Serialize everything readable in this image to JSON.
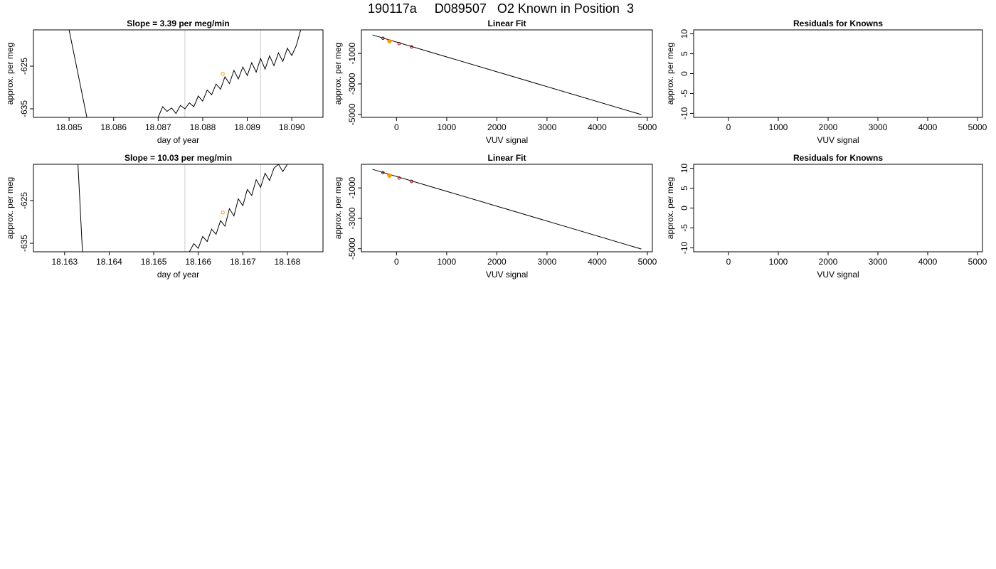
{
  "main_title": "190117a     D089507   O2 Known in Position  3",
  "colors": {
    "line": "#000000",
    "vline": "#cccccc",
    "marker": "#ff9900",
    "point": "#8b0000",
    "frame": "#000000"
  },
  "chart_data": [
    {
      "type": "line",
      "title": "Slope =  3.39  per meg/min",
      "xlabel": "day of year",
      "ylabel": "approx. per meg",
      "xlim": [
        18.0842,
        18.0907
      ],
      "ylim": [
        -637,
        -616.5
      ],
      "x_ticks": [
        "18.085",
        "18.086",
        "18.087",
        "18.088",
        "18.089",
        "18.090"
      ],
      "x_tick_values": [
        18.085,
        18.086,
        18.087,
        18.088,
        18.089,
        18.09
      ],
      "y_ticks": [
        "-635",
        "-625"
      ],
      "y_tick_values": [
        -635,
        -625
      ],
      "vlines": [
        18.0876,
        18.0893
      ],
      "marker": {
        "x": 18.08845,
        "y": -626.8
      },
      "series": [
        {
          "values": [
            [
              18.085,
              -616.5
            ],
            [
              18.0854,
              -637
            ],
            [
              18.087,
              -637
            ],
            [
              18.0871,
              -634.5
            ],
            [
              18.0872,
              -635.6
            ],
            [
              18.0873,
              -634.8
            ],
            [
              18.0874,
              -636.1
            ],
            [
              18.0875,
              -634.2
            ],
            [
              18.0876,
              -635.0
            ],
            [
              18.0877,
              -633.6
            ],
            [
              18.0878,
              -634.5
            ],
            [
              18.0879,
              -632.0
            ],
            [
              18.088,
              -633.2
            ],
            [
              18.0881,
              -630.6
            ],
            [
              18.0882,
              -631.7
            ],
            [
              18.0883,
              -629.2
            ],
            [
              18.0884,
              -630.4
            ],
            [
              18.0885,
              -627.5
            ],
            [
              18.0886,
              -629.1
            ],
            [
              18.0887,
              -626.0
            ],
            [
              18.0888,
              -628.0
            ],
            [
              18.0889,
              -625.2
            ],
            [
              18.089,
              -627.2
            ],
            [
              18.0891,
              -624.2
            ],
            [
              18.0892,
              -626.4
            ],
            [
              18.0893,
              -623.2
            ],
            [
              18.0894,
              -625.7
            ],
            [
              18.0895,
              -622.6
            ],
            [
              18.0896,
              -624.9
            ],
            [
              18.0897,
              -621.9
            ],
            [
              18.0898,
              -623.9
            ],
            [
              18.0899,
              -620.8
            ],
            [
              18.09,
              -622.5
            ],
            [
              18.0901,
              -620.2
            ],
            [
              18.0902,
              -616.5
            ]
          ]
        }
      ]
    },
    {
      "type": "scatter",
      "title": "Linear Fit",
      "xlabel": "VUV signal",
      "ylabel": "approx. per meg",
      "xlim": [
        -700,
        5100
      ],
      "ylim": [
        -5200,
        550
      ],
      "x_ticks": [
        "0",
        "1000",
        "2000",
        "3000",
        "4000",
        "5000"
      ],
      "x_tick_values": [
        0,
        1000,
        2000,
        3000,
        4000,
        5000
      ],
      "y_ticks": [
        "-5000",
        "-3000",
        "-1000"
      ],
      "y_tick_values": [
        -5000,
        -3000,
        -1000
      ],
      "fit_line": [
        [
          -480,
          220
        ],
        [
          4880,
          -5020
        ]
      ],
      "points": [
        [
          -270,
          0
        ],
        [
          -150,
          -160
        ],
        [
          50,
          -350
        ],
        [
          300,
          -570
        ]
      ],
      "highlight": [
        -140,
        -200
      ]
    },
    {
      "type": "scatter",
      "title": "Residuals for Knowns",
      "xlabel": "VUV signal",
      "ylabel": "approx. per meg",
      "xlim": [
        -700,
        5100
      ],
      "ylim": [
        -11,
        11
      ],
      "x_ticks": [
        "0",
        "1000",
        "2000",
        "3000",
        "4000",
        "5000"
      ],
      "x_tick_values": [
        0,
        1000,
        2000,
        3000,
        4000,
        5000
      ],
      "y_ticks": [
        "-10",
        "-5",
        "0",
        "5",
        "10"
      ],
      "y_tick_values": [
        -10,
        -5,
        0,
        5,
        10
      ]
    },
    {
      "type": "line",
      "title": "Slope =  10.03  per meg/min",
      "xlabel": "day of year",
      "ylabel": "approx. per meg",
      "xlim": [
        18.1623,
        18.1688
      ],
      "ylim": [
        -637,
        -616.5
      ],
      "x_ticks": [
        "18.163",
        "18.164",
        "18.165",
        "18.166",
        "18.167",
        "18.168"
      ],
      "x_tick_values": [
        18.163,
        18.164,
        18.165,
        18.166,
        18.167,
        18.168
      ],
      "y_ticks": [
        "-635",
        "-625"
      ],
      "y_tick_values": [
        -635,
        -625
      ],
      "vlines": [
        18.1657,
        18.1674
      ],
      "marker": {
        "x": 18.16655,
        "y": -627.8
      },
      "series": [
        {
          "values": [
            [
              18.1633,
              -616.5
            ],
            [
              18.1634,
              -637
            ],
            [
              18.1658,
              -637
            ],
            [
              18.1659,
              -635.1
            ],
            [
              18.166,
              -636.2
            ],
            [
              18.1661,
              -633.4
            ],
            [
              18.1662,
              -634.6
            ],
            [
              18.1663,
              -631.7
            ],
            [
              18.1664,
              -632.9
            ],
            [
              18.1665,
              -629.7
            ],
            [
              18.1666,
              -631.0
            ],
            [
              18.1667,
              -626.9
            ],
            [
              18.1668,
              -628.6
            ],
            [
              18.1669,
              -624.6
            ],
            [
              18.167,
              -626.2
            ],
            [
              18.1671,
              -622.4
            ],
            [
              18.1672,
              -623.8
            ],
            [
              18.1673,
              -620.1
            ],
            [
              18.1674,
              -621.9
            ],
            [
              18.1675,
              -618.6
            ],
            [
              18.1676,
              -620.3
            ],
            [
              18.1677,
              -617.4
            ],
            [
              18.1678,
              -616.5
            ],
            [
              18.1679,
              -618.2
            ],
            [
              18.168,
              -616.5
            ]
          ]
        }
      ]
    },
    {
      "type": "scatter",
      "title": "Linear Fit",
      "xlabel": "VUV signal",
      "ylabel": "approx. per meg",
      "xlim": [
        -700,
        5100
      ],
      "ylim": [
        -5200,
        550
      ],
      "x_ticks": [
        "0",
        "1000",
        "2000",
        "3000",
        "4000",
        "5000"
      ],
      "x_tick_values": [
        0,
        1000,
        2000,
        3000,
        4000,
        5000
      ],
      "y_ticks": [
        "-5000",
        "-3000",
        "-1000"
      ],
      "y_tick_values": [
        -5000,
        -3000,
        -1000
      ],
      "fit_line": [
        [
          -480,
          220
        ],
        [
          4880,
          -5020
        ]
      ],
      "points": [
        [
          -270,
          0
        ],
        [
          -150,
          -160
        ],
        [
          50,
          -350
        ],
        [
          300,
          -570
        ]
      ],
      "highlight": [
        -140,
        -200
      ]
    },
    {
      "type": "scatter",
      "title": "Residuals for Knowns",
      "xlabel": "VUV signal",
      "ylabel": "approx. per meg",
      "xlim": [
        -700,
        5100
      ],
      "ylim": [
        -11,
        11
      ],
      "x_ticks": [
        "0",
        "1000",
        "2000",
        "3000",
        "4000",
        "5000"
      ],
      "x_tick_values": [
        0,
        1000,
        2000,
        3000,
        4000,
        5000
      ],
      "y_ticks": [
        "-10",
        "-5",
        "0",
        "5",
        "10"
      ],
      "y_tick_values": [
        -10,
        -5,
        0,
        5,
        10
      ]
    }
  ]
}
